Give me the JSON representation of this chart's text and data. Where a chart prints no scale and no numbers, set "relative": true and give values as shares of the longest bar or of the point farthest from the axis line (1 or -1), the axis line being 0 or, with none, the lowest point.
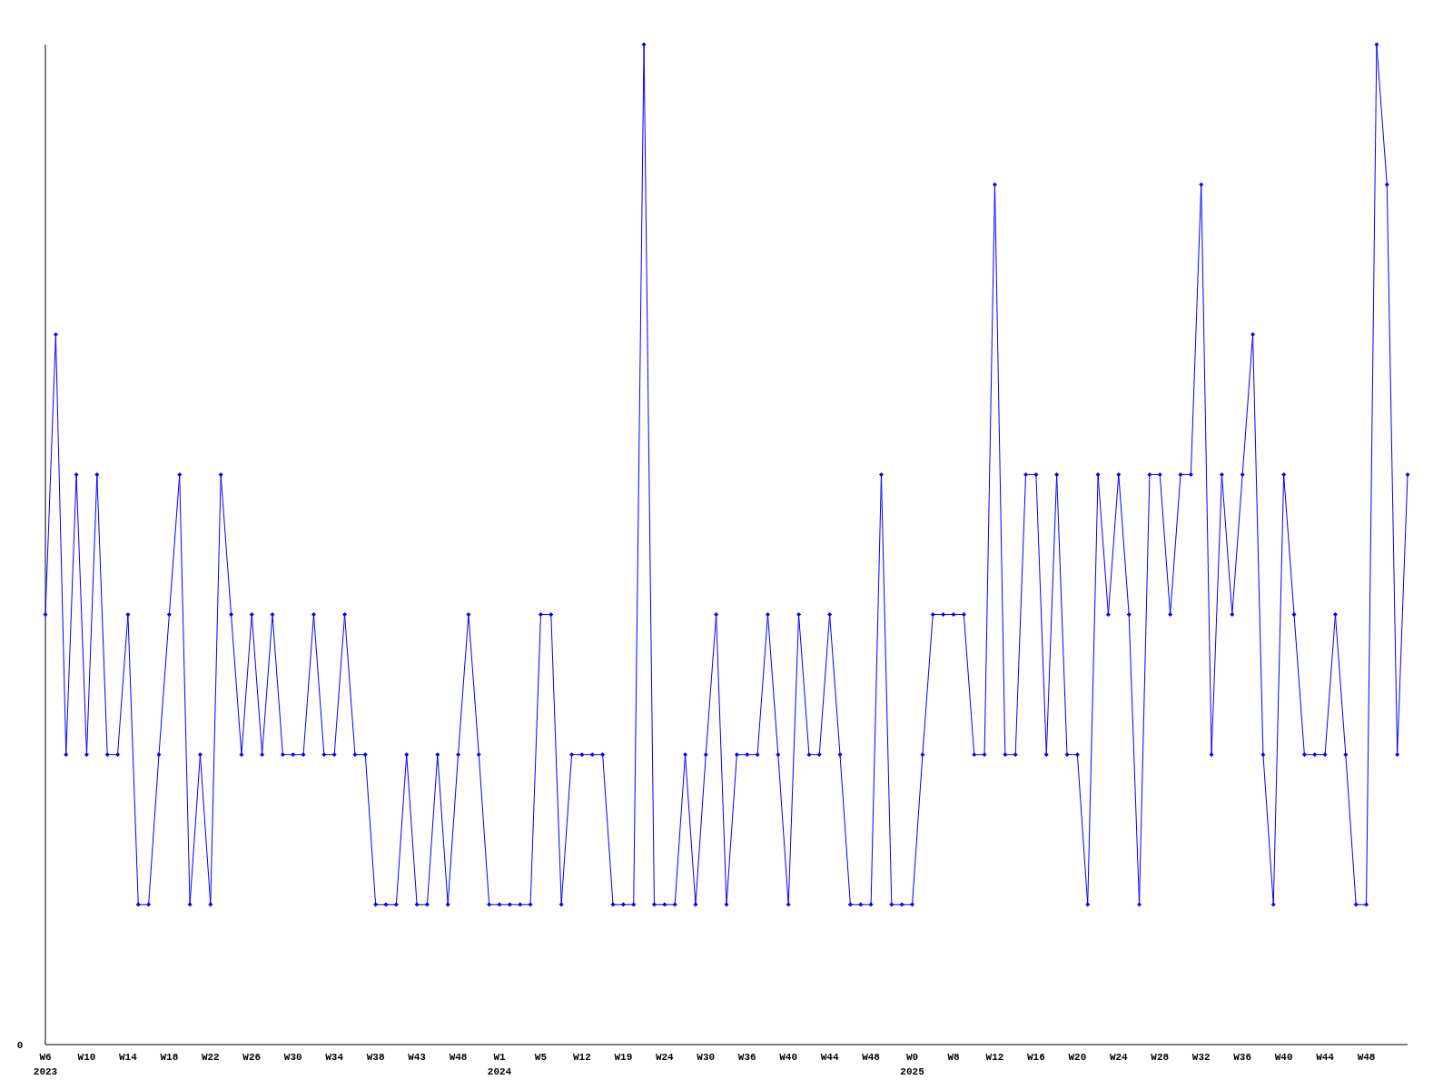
{
  "chart_data": {
    "type": "line",
    "relative": true,
    "annotations": [
      "0"
    ],
    "marker": "diamond",
    "categories": [
      "W6 2023",
      null,
      null,
      null,
      "W10",
      null,
      null,
      null,
      "W14",
      null,
      null,
      null,
      "W18",
      null,
      null,
      null,
      "W22",
      null,
      null,
      null,
      "W26",
      null,
      null,
      null,
      "W30",
      null,
      null,
      null,
      "W34",
      null,
      null,
      null,
      "W38",
      null,
      null,
      null,
      "W43",
      null,
      null,
      null,
      "W48",
      null,
      null,
      null,
      "W1 2024",
      null,
      null,
      null,
      "W5",
      null,
      null,
      null,
      "W12",
      null,
      null,
      null,
      "W19",
      null,
      null,
      null,
      "W24",
      null,
      null,
      null,
      "W30",
      null,
      null,
      null,
      "W36",
      null,
      null,
      null,
      "W40",
      null,
      null,
      null,
      "W44",
      null,
      null,
      null,
      "W48",
      null,
      null,
      null,
      "W0 2025",
      null,
      null,
      null,
      "W8",
      null,
      null,
      null,
      "W12",
      null,
      null,
      null,
      "W16",
      null,
      null,
      null,
      "W20",
      null,
      null,
      null,
      "W24",
      null,
      null,
      null,
      "W28",
      null,
      null,
      null,
      "W32",
      null,
      null,
      null,
      "W36",
      null,
      null,
      null,
      "W40",
      null,
      null,
      null,
      "W44",
      null,
      null,
      null,
      "W48",
      null,
      null,
      null,
      null
    ],
    "series": [
      {
        "color": "#0000ff",
        "values": [
          0.43,
          0.71,
          0.29,
          0.57,
          0.29,
          0.57,
          0.29,
          0.29,
          0.43,
          0.14,
          0.14,
          0.29,
          0.43,
          0.57,
          0.14,
          0.29,
          0.14,
          0.57,
          0.43,
          0.29,
          0.43,
          0.29,
          0.43,
          0.29,
          0.29,
          0.29,
          0.43,
          0.29,
          0.29,
          0.43,
          0.29,
          0.29,
          0.14,
          0.14,
          0.14,
          0.29,
          0.14,
          0.14,
          0.29,
          0.14,
          0.29,
          0.43,
          0.29,
          0.14,
          0.14,
          0.14,
          0.14,
          0.14,
          0.43,
          0.43,
          0.14,
          0.29,
          0.29,
          0.29,
          0.29,
          0.14,
          0.14,
          0.14,
          1,
          0.14,
          0.14,
          0.14,
          0.29,
          0.14,
          0.29,
          0.43,
          0.14,
          0.29,
          0.29,
          0.29,
          0.43,
          0.29,
          0.14,
          0.43,
          0.29,
          0.29,
          0.43,
          0.29,
          0.14,
          0.14,
          0.14,
          0.57,
          0.14,
          0.14,
          0.14,
          0.29,
          0.43,
          0.43,
          0.43,
          0.43,
          0.29,
          0.29,
          0.86,
          0.29,
          0.29,
          0.57,
          0.57,
          0.29,
          0.57,
          0.29,
          0.29,
          0.14,
          0.57,
          0.43,
          0.57,
          0.43,
          0.14,
          0.57,
          0.57,
          0.43,
          0.57,
          0.57,
          0.86,
          0.29,
          0.57,
          0.43,
          0.57,
          0.71,
          0.29,
          0.14,
          0.57,
          0.43,
          0.29,
          0.29,
          0.29,
          0.43,
          0.29,
          0.14,
          0.14,
          1,
          0.86,
          0.29,
          0.57
        ]
      }
    ]
  }
}
